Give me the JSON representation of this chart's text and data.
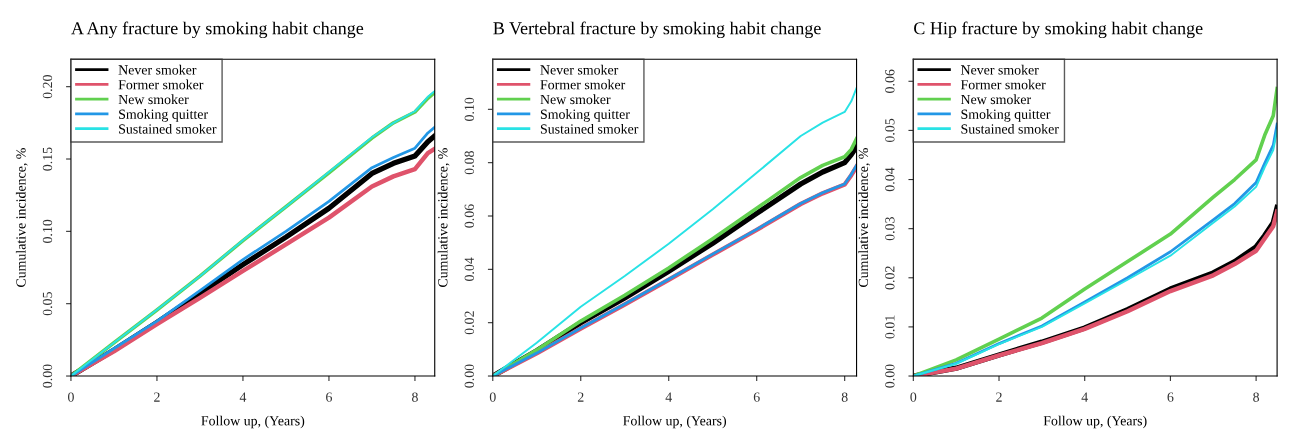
{
  "chart_data": [
    {
      "type": "line",
      "title": "A Any fracture by smoking habit change",
      "xlabel": "Follow up, (Years)",
      "ylabel": "Cumulative incidence, %",
      "x": [
        0,
        1,
        2,
        3,
        4,
        5,
        6,
        7,
        7.5,
        8,
        8.3,
        8.46
      ],
      "xlim": [
        0,
        8.46
      ],
      "ylim": [
        0,
        0.219
      ],
      "xticks": [
        0,
        2,
        4,
        6,
        8
      ],
      "yticks": [
        {
          "value": 0,
          "label": "0.00"
        },
        0.05,
        {
          "value": 0.1,
          "label": "0.10"
        },
        0.15,
        {
          "value": 0.2,
          "label": "0.20"
        }
      ],
      "legend": "top left",
      "grid": false,
      "series": [
        {
          "name": "Never smoker",
          "color": "#000000",
          "values": [
            0,
            0.018,
            0.037,
            0.057,
            0.077,
            0.096,
            0.116,
            0.14,
            0.147,
            0.152,
            0.162,
            0.166
          ]
        },
        {
          "name": "Former smoker",
          "color": "#df536b",
          "values": [
            0,
            0.017,
            0.0358,
            0.054,
            0.0726,
            0.091,
            0.1095,
            0.131,
            0.138,
            0.143,
            0.154,
            0.157
          ]
        },
        {
          "name": "New smoker",
          "color": "#61d04f",
          "values": [
            0,
            0.023,
            0.0456,
            0.069,
            0.0936,
            0.117,
            0.1405,
            0.1645,
            0.175,
            0.1825,
            0.192,
            0.196
          ]
        },
        {
          "name": "Smoking quitter",
          "color": "#2297e6",
          "values": [
            0,
            0.019,
            0.038,
            0.059,
            0.0805,
            0.1,
            0.1207,
            0.144,
            0.151,
            0.1575,
            0.168,
            0.172
          ]
        },
        {
          "name": "Sustained smoker",
          "color": "#28e2e5",
          "values": [
            0,
            0.023,
            0.0458,
            0.069,
            0.0939,
            0.117,
            0.141,
            0.165,
            0.175,
            0.183,
            0.193,
            0.197
          ]
        }
      ]
    },
    {
      "type": "line",
      "title": "B Vertebral fracture by smoking habit change",
      "xlabel": "Follow up, (Years)",
      "ylabel": "Cumulative incidence, %",
      "x": [
        0,
        1,
        2,
        3,
        4,
        5,
        6,
        7,
        7.5,
        8,
        8.15,
        8.27
      ],
      "xlim": [
        0,
        8.27
      ],
      "ylim": [
        0,
        0.1188
      ],
      "xticks": [
        0,
        2,
        4,
        6,
        8
      ],
      "yticks": [
        {
          "value": 0,
          "label": "0.00"
        },
        0.02,
        0.04,
        0.06,
        0.08,
        {
          "value": 0.1,
          "label": "0.10"
        }
      ],
      "legend": "top left",
      "grid": false,
      "series": [
        {
          "name": "Never smoker",
          "color": "#000000",
          "values": [
            0,
            0.0095,
            0.02,
            0.0293,
            0.0393,
            0.0498,
            0.061,
            0.072,
            0.0765,
            0.08,
            0.083,
            0.086
          ]
        },
        {
          "name": "Former smoker",
          "color": "#df536b",
          "values": [
            0,
            0.0085,
            0.0178,
            0.0268,
            0.0361,
            0.0455,
            0.0548,
            0.0645,
            0.0685,
            0.0718,
            0.0753,
            0.0785
          ]
        },
        {
          "name": "New smoker",
          "color": "#61d04f",
          "values": [
            0,
            0.0098,
            0.0206,
            0.0303,
            0.0405,
            0.0515,
            0.0629,
            0.0744,
            0.079,
            0.0822,
            0.085,
            0.089
          ]
        },
        {
          "name": "Smoking quitter",
          "color": "#2297e6",
          "values": [
            0,
            0.0086,
            0.018,
            0.027,
            0.0363,
            0.0457,
            0.055,
            0.0647,
            0.0687,
            0.072,
            0.0756,
            0.079
          ]
        },
        {
          "name": "Sustained smoker",
          "color": "#28e2e5",
          "values": [
            0,
            0.0125,
            0.026,
            0.0375,
            0.0496,
            0.0625,
            0.0762,
            0.09,
            0.095,
            0.099,
            0.103,
            0.108
          ]
        }
      ]
    },
    {
      "type": "line",
      "title": "C Hip fracture by smoking habit change",
      "xlabel": "Follow up, (Years)",
      "ylabel": "Cumulative incidence, %",
      "x": [
        0,
        1,
        2,
        3,
        4,
        5,
        6,
        7,
        7.5,
        8,
        8.2,
        8.4,
        8.49
      ],
      "xlim": [
        0,
        8.49
      ],
      "ylim": [
        0,
        0.0645
      ],
      "xticks": [
        0,
        2,
        4,
        6,
        8
      ],
      "yticks": [
        {
          "value": 0,
          "label": "0.00"
        },
        0.01,
        0.02,
        0.03,
        0.04,
        0.05,
        0.06
      ],
      "legend": "top left",
      "grid": false,
      "series": [
        {
          "name": "Never smoker",
          "color": "#000000",
          "values": [
            0,
            0.0016,
            0.0043,
            0.0069,
            0.0098,
            0.0135,
            0.0177,
            0.021,
            0.0233,
            0.0263,
            0.0286,
            0.0312,
            0.0343
          ]
        },
        {
          "name": "Former smoker",
          "color": "#df536b",
          "values": [
            0,
            0.0015,
            0.0042,
            0.0067,
            0.0096,
            0.0132,
            0.0173,
            0.0205,
            0.0228,
            0.0255,
            0.028,
            0.0305,
            0.0335
          ]
        },
        {
          "name": "New smoker",
          "color": "#61d04f",
          "values": [
            0,
            0.0033,
            0.0075,
            0.0118,
            0.0177,
            0.0233,
            0.0289,
            0.0364,
            0.04,
            0.044,
            0.049,
            0.053,
            0.0585
          ]
        },
        {
          "name": "Smoking quitter",
          "color": "#2297e6",
          "values": [
            0,
            0.0026,
            0.0066,
            0.0102,
            0.0151,
            0.02,
            0.0253,
            0.0318,
            0.0351,
            0.0394,
            0.0433,
            0.047,
            0.0513
          ]
        },
        {
          "name": "Sustained smoker",
          "color": "#28e2e5",
          "values": [
            0,
            0.0025,
            0.0065,
            0.01,
            0.0148,
            0.0196,
            0.0245,
            0.0312,
            0.0345,
            0.0385,
            0.0425,
            0.046,
            0.05
          ]
        }
      ]
    }
  ]
}
